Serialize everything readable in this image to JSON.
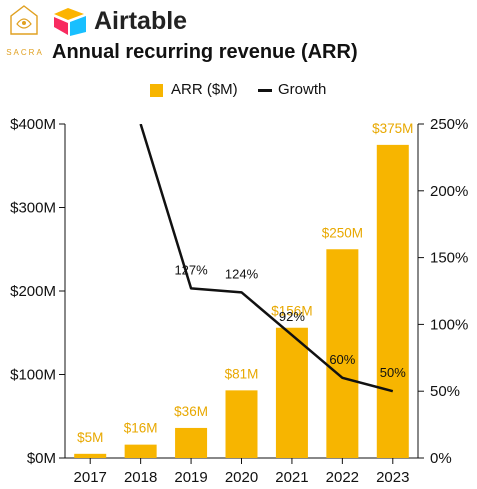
{
  "header": {
    "sacra_logo_text": "SACRA",
    "brand_name": "Airtable",
    "title": "Annual recurring revenue (ARR)"
  },
  "colors": {
    "bar": "#F7B500",
    "bar_label": "#E8A800",
    "line": "#111111",
    "axis": "#111111",
    "sacra": "#E0A020",
    "brand_yellow": "#FCB400",
    "brand_red": "#F82B60",
    "brand_blue": "#18BFFF"
  },
  "icons": {
    "sacra": "sacra-logo-icon",
    "brand": "airtable-logo-icon"
  },
  "chart_data": {
    "type": "bar",
    "title": "Annual recurring revenue (ARR)",
    "categories": [
      "2017",
      "2018",
      "2019",
      "2020",
      "2021",
      "2022",
      "2023"
    ],
    "series": [
      {
        "name": "ARR ($M)",
        "type": "bar",
        "axis": "left",
        "values": [
          5,
          16,
          36,
          81,
          156,
          250,
          375
        ],
        "labels": [
          "$5M",
          "$16M",
          "$36M",
          "$81M",
          "$156M",
          "$250M",
          "$375M"
        ]
      },
      {
        "name": "Growth",
        "type": "line",
        "axis": "right",
        "values": [
          null,
          250,
          127,
          124,
          92,
          60,
          50
        ],
        "labels": [
          null,
          null,
          "127%",
          "124%",
          "92%",
          "60%",
          "50%"
        ]
      }
    ],
    "y_left": {
      "ticks": [
        0,
        100,
        200,
        300,
        400
      ],
      "tick_labels": [
        "$0M",
        "$100M",
        "$200M",
        "$300M",
        "$400M"
      ],
      "range": [
        0,
        400
      ]
    },
    "y_right": {
      "ticks": [
        0,
        50,
        100,
        150,
        200,
        250
      ],
      "tick_labels": [
        "0%",
        "50%",
        "100%",
        "150%",
        "200%",
        "250%"
      ],
      "range": [
        0,
        250
      ]
    },
    "legend": "top-center",
    "grid": false
  }
}
